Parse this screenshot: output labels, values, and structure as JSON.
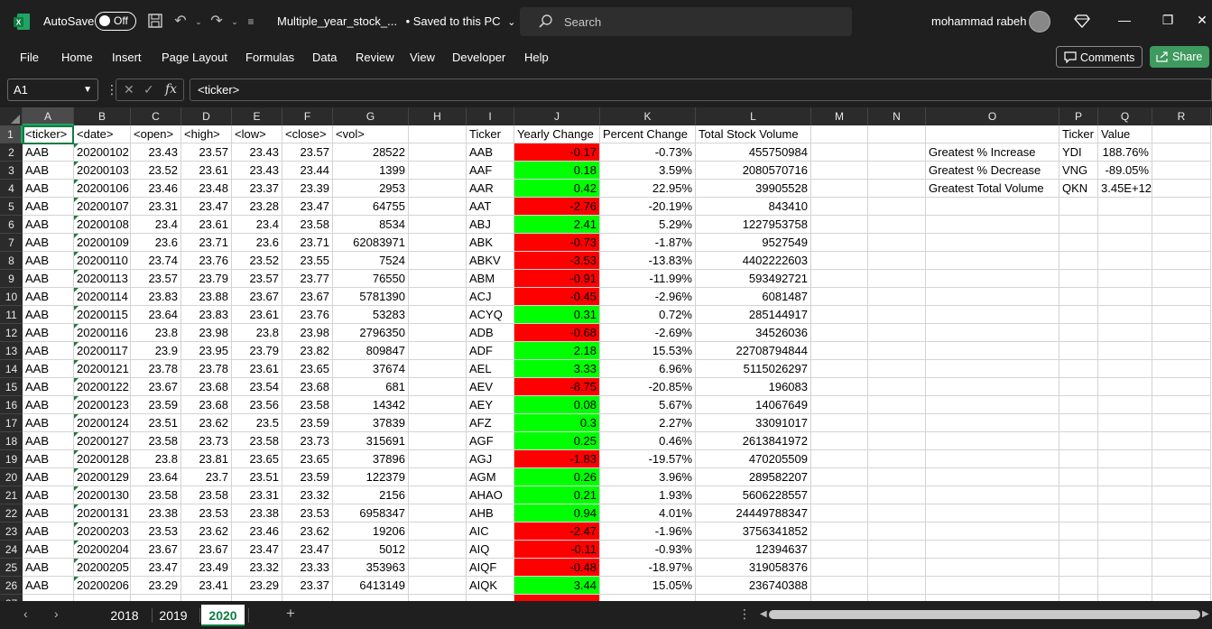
{
  "titlebar": {
    "autosave_label": "AutoSave",
    "autosave_state": "Off",
    "filename": "Multiple_year_stock_...",
    "save_status": "• Saved to this PC",
    "search_placeholder": "Search",
    "user_name": "mohammad rabeh"
  },
  "menu": {
    "items": [
      "File",
      "Home",
      "Insert",
      "Page Layout",
      "Formulas",
      "Data",
      "Review",
      "View",
      "Developer",
      "Help"
    ],
    "comments_label": "Comments",
    "share_label": "Share"
  },
  "formula_bar": {
    "name_box": "A1",
    "content": "<ticker>"
  },
  "columns": [
    "A",
    "B",
    "C",
    "D",
    "E",
    "F",
    "G",
    "H",
    "I",
    "J",
    "K",
    "L",
    "M",
    "N",
    "O",
    "P",
    "Q",
    "R"
  ],
  "row_numbers": [
    "1",
    "2",
    "3",
    "4",
    "5",
    "6",
    "7",
    "8",
    "9",
    "10",
    "11",
    "12",
    "13",
    "14",
    "15",
    "16",
    "17",
    "18",
    "19",
    "20",
    "21",
    "22",
    "23",
    "24",
    "25",
    "26",
    "27"
  ],
  "raw_headers": [
    "<ticker>",
    "<date>",
    "<open>",
    "<high>",
    "<low>",
    "<close>",
    "<vol>"
  ],
  "raw_rows": [
    [
      "AAB",
      "20200102",
      "23.43",
      "23.57",
      "23.43",
      "23.57",
      "28522"
    ],
    [
      "AAB",
      "20200103",
      "23.52",
      "23.61",
      "23.43",
      "23.44",
      "1399"
    ],
    [
      "AAB",
      "20200106",
      "23.46",
      "23.48",
      "23.37",
      "23.39",
      "2953"
    ],
    [
      "AAB",
      "20200107",
      "23.31",
      "23.47",
      "23.28",
      "23.47",
      "64755"
    ],
    [
      "AAB",
      "20200108",
      "23.4",
      "23.61",
      "23.4",
      "23.58",
      "8534"
    ],
    [
      "AAB",
      "20200109",
      "23.6",
      "23.71",
      "23.6",
      "23.71",
      "62083971"
    ],
    [
      "AAB",
      "20200110",
      "23.74",
      "23.76",
      "23.52",
      "23.55",
      "7524"
    ],
    [
      "AAB",
      "20200113",
      "23.57",
      "23.79",
      "23.57",
      "23.77",
      "76550"
    ],
    [
      "AAB",
      "20200114",
      "23.83",
      "23.88",
      "23.67",
      "23.67",
      "5781390"
    ],
    [
      "AAB",
      "20200115",
      "23.64",
      "23.83",
      "23.61",
      "23.76",
      "53283"
    ],
    [
      "AAB",
      "20200116",
      "23.8",
      "23.98",
      "23.8",
      "23.98",
      "2796350"
    ],
    [
      "AAB",
      "20200117",
      "23.9",
      "23.95",
      "23.79",
      "23.82",
      "809847"
    ],
    [
      "AAB",
      "20200121",
      "23.78",
      "23.78",
      "23.61",
      "23.65",
      "37674"
    ],
    [
      "AAB",
      "20200122",
      "23.67",
      "23.68",
      "23.54",
      "23.68",
      "681"
    ],
    [
      "AAB",
      "20200123",
      "23.59",
      "23.68",
      "23.56",
      "23.58",
      "14342"
    ],
    [
      "AAB",
      "20200124",
      "23.51",
      "23.62",
      "23.5",
      "23.59",
      "37839"
    ],
    [
      "AAB",
      "20200127",
      "23.58",
      "23.73",
      "23.58",
      "23.73",
      "315691"
    ],
    [
      "AAB",
      "20200128",
      "23.8",
      "23.81",
      "23.65",
      "23.65",
      "37896"
    ],
    [
      "AAB",
      "20200129",
      "23.64",
      "23.7",
      "23.51",
      "23.59",
      "122379"
    ],
    [
      "AAB",
      "20200130",
      "23.58",
      "23.58",
      "23.31",
      "23.32",
      "2156"
    ],
    [
      "AAB",
      "20200131",
      "23.38",
      "23.53",
      "23.38",
      "23.53",
      "6958347"
    ],
    [
      "AAB",
      "20200203",
      "23.53",
      "23.62",
      "23.46",
      "23.62",
      "19206"
    ],
    [
      "AAB",
      "20200204",
      "23.67",
      "23.67",
      "23.47",
      "23.47",
      "5012"
    ],
    [
      "AAB",
      "20200205",
      "23.47",
      "23.49",
      "23.32",
      "23.33",
      "353963"
    ],
    [
      "AAB",
      "20200206",
      "23.29",
      "23.41",
      "23.29",
      "23.37",
      "6413149"
    ]
  ],
  "summary_headers": [
    "Ticker",
    "Yearly Change",
    "Percent Change",
    "Total Stock Volume"
  ],
  "summary_rows": [
    [
      "AAB",
      "-0.17",
      "-0.73%",
      "455750984"
    ],
    [
      "AAF",
      "0.18",
      "3.59%",
      "2080570716"
    ],
    [
      "AAR",
      "0.42",
      "22.95%",
      "39905528"
    ],
    [
      "AAT",
      "-2.76",
      "-20.19%",
      "843410"
    ],
    [
      "ABJ",
      "2.41",
      "5.29%",
      "1227953758"
    ],
    [
      "ABK",
      "-0.73",
      "-1.87%",
      "9527549"
    ],
    [
      "ABKV",
      "-3.53",
      "-13.83%",
      "4402222603"
    ],
    [
      "ABM",
      "-0.91",
      "-11.99%",
      "593492721"
    ],
    [
      "ACJ",
      "-0.45",
      "-2.96%",
      "6081487"
    ],
    [
      "ACYQ",
      "0.31",
      "0.72%",
      "285144917"
    ],
    [
      "ADB",
      "-0.68",
      "-2.69%",
      "34526036"
    ],
    [
      "ADF",
      "2.18",
      "15.53%",
      "22708794844"
    ],
    [
      "AEL",
      "3.33",
      "6.96%",
      "5115026297"
    ],
    [
      "AEV",
      "-8.75",
      "-20.85%",
      "196083"
    ],
    [
      "AEY",
      "0.08",
      "5.67%",
      "14067649"
    ],
    [
      "AFZ",
      "0.3",
      "2.27%",
      "33091017"
    ],
    [
      "AGF",
      "0.25",
      "0.46%",
      "2613841972"
    ],
    [
      "AGJ",
      "-1.83",
      "-19.57%",
      "470205509"
    ],
    [
      "AGM",
      "0.26",
      "3.96%",
      "289582207"
    ],
    [
      "AHAO",
      "0.21",
      "1.93%",
      "5606228557"
    ],
    [
      "AHB",
      "0.94",
      "4.01%",
      "24449788347"
    ],
    [
      "AIC",
      "-2.47",
      "-1.96%",
      "3756341852"
    ],
    [
      "AIQ",
      "-0.11",
      "-0.93%",
      "12394637"
    ],
    [
      "AIQF",
      "-0.48",
      "-18.97%",
      "319058376"
    ],
    [
      "AIQK",
      "3.44",
      "15.05%",
      "236740388"
    ]
  ],
  "greatest": {
    "headers": [
      "Ticker",
      "Value"
    ],
    "rows": [
      [
        "Greatest % Increase",
        "YDI",
        "188.76%"
      ],
      [
        "Greatest % Decrease",
        "VNG",
        "-89.05%"
      ],
      [
        "Greatest Total Volume",
        "QKN",
        "3.45E+12"
      ]
    ]
  },
  "colors": {
    "positive_fill": "#00ff00",
    "negative_fill": "#ff0000",
    "excel_green": "#107c41"
  },
  "sheet_tabs": {
    "tabs": [
      "2018",
      "2019",
      "2020"
    ],
    "active": "2020"
  }
}
